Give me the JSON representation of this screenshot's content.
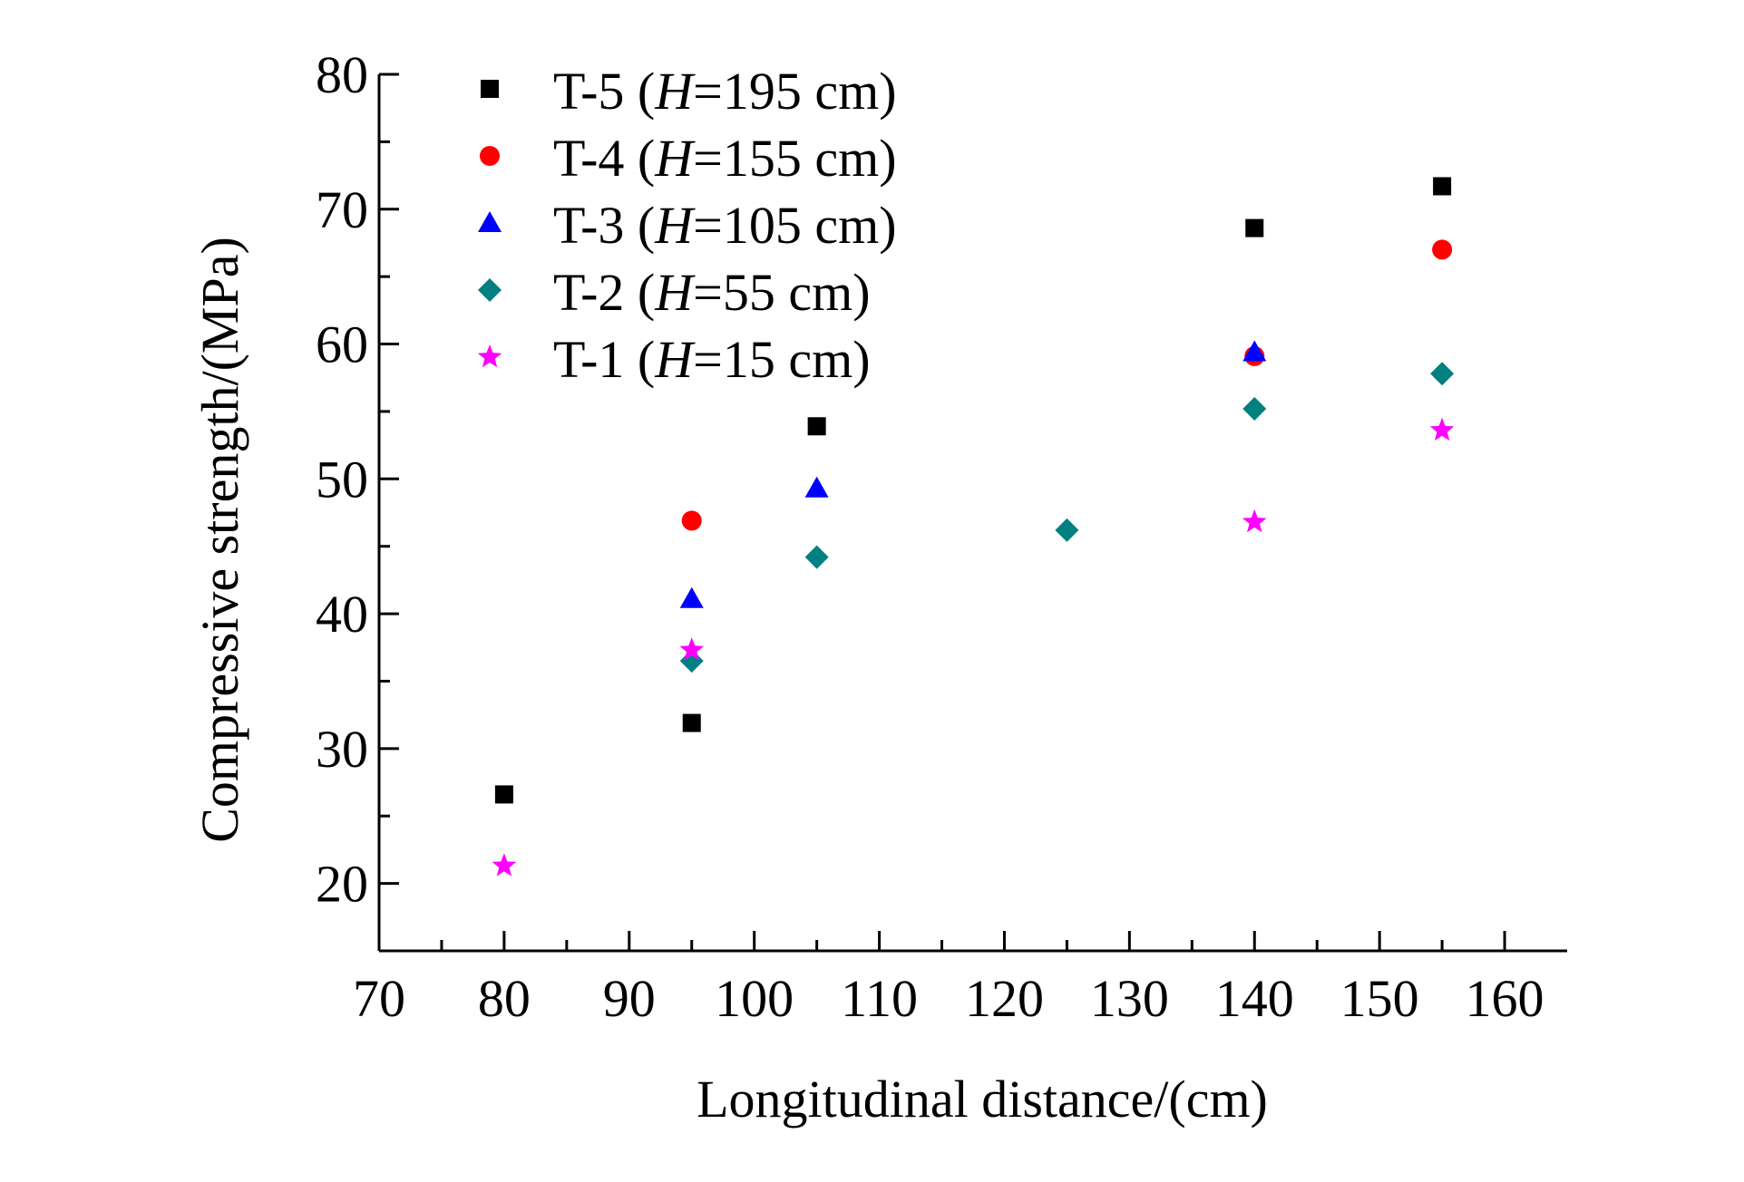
{
  "chart_data": {
    "type": "scatter",
    "title": "",
    "xlabel": "Longitudinal distance/(cm)",
    "ylabel": "Compressive strength/(MPa)",
    "xlim": [
      70,
      165
    ],
    "ylim": [
      15,
      80
    ],
    "xticks": [
      70,
      80,
      90,
      100,
      110,
      120,
      130,
      140,
      150,
      160
    ],
    "yticks": [
      20,
      30,
      40,
      50,
      60,
      70,
      80
    ],
    "xtick_labels": [
      "70",
      "80",
      "90",
      "100",
      "110",
      "120",
      "130",
      "140",
      "150",
      "160"
    ],
    "ytick_labels": [
      "20",
      "30",
      "40",
      "50",
      "60",
      "70",
      "80"
    ],
    "grid": false,
    "legend_position": "top-left",
    "series": [
      {
        "name": "T-5",
        "legend_prefix": "T-5 (",
        "legend_var": "H",
        "legend_suffix": "=195 cm)",
        "marker": "square",
        "color": "#000000",
        "points": [
          [
            80,
            26.6
          ],
          [
            95,
            31.9
          ],
          [
            105,
            53.9
          ],
          [
            140,
            68.6
          ],
          [
            155,
            71.7
          ]
        ]
      },
      {
        "name": "T-4",
        "legend_prefix": "T-4 (",
        "legend_var": "H",
        "legend_suffix": "=155 cm)",
        "marker": "circle",
        "color": "#ff0000",
        "points": [
          [
            95,
            46.9
          ],
          [
            140,
            59.1
          ],
          [
            155,
            67.0
          ]
        ]
      },
      {
        "name": "T-3",
        "legend_prefix": "T-3 (",
        "legend_var": "H",
        "legend_suffix": "=105 cm)",
        "marker": "triangle",
        "color": "#0000ff",
        "points": [
          [
            95,
            41.1
          ],
          [
            105,
            49.3
          ],
          [
            140,
            59.4
          ]
        ]
      },
      {
        "name": "T-2",
        "legend_prefix": "T-2 (",
        "legend_var": "H",
        "legend_suffix": "=55 cm)",
        "marker": "diamond",
        "color": "#008080",
        "points": [
          [
            95,
            36.5
          ],
          [
            105,
            44.2
          ],
          [
            125,
            46.2
          ],
          [
            140,
            55.2
          ],
          [
            155,
            57.8
          ]
        ]
      },
      {
        "name": "T-1",
        "legend_prefix": "T-1 (",
        "legend_var": "H",
        "legend_suffix": "=15 cm)",
        "marker": "star",
        "color": "#ff00ff",
        "points": [
          [
            80,
            21.3
          ],
          [
            95,
            37.3
          ],
          [
            140,
            46.8
          ],
          [
            155,
            53.6
          ]
        ]
      }
    ]
  }
}
